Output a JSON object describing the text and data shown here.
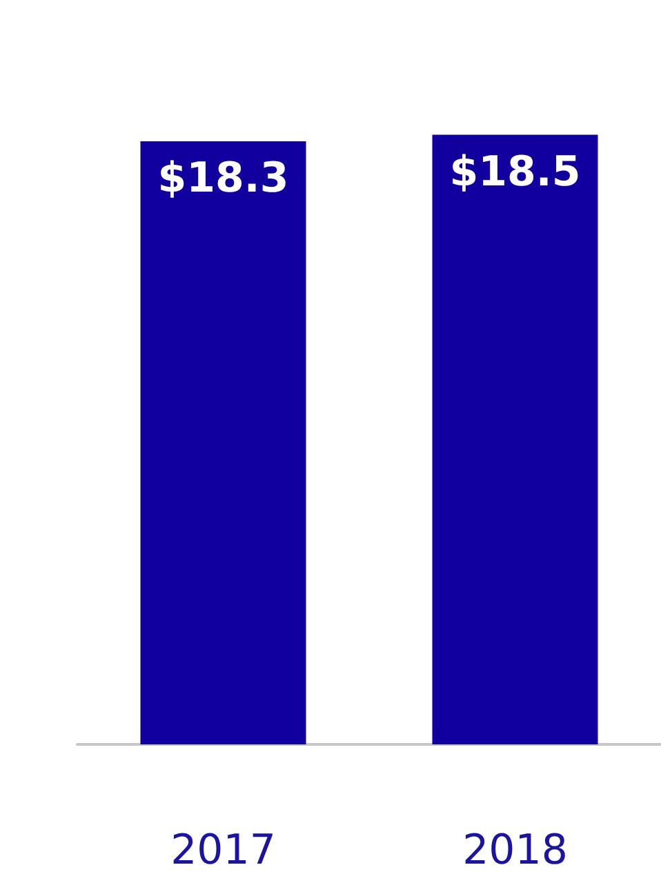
{
  "chart_data": {
    "type": "bar",
    "categories": [
      "2017",
      "2018"
    ],
    "series": [
      {
        "color": "#12009e",
        "values": [
          18.3,
          18.5
        ],
        "value_labels": [
          "$18.3",
          "$18.5"
        ]
      }
    ]
  }
}
